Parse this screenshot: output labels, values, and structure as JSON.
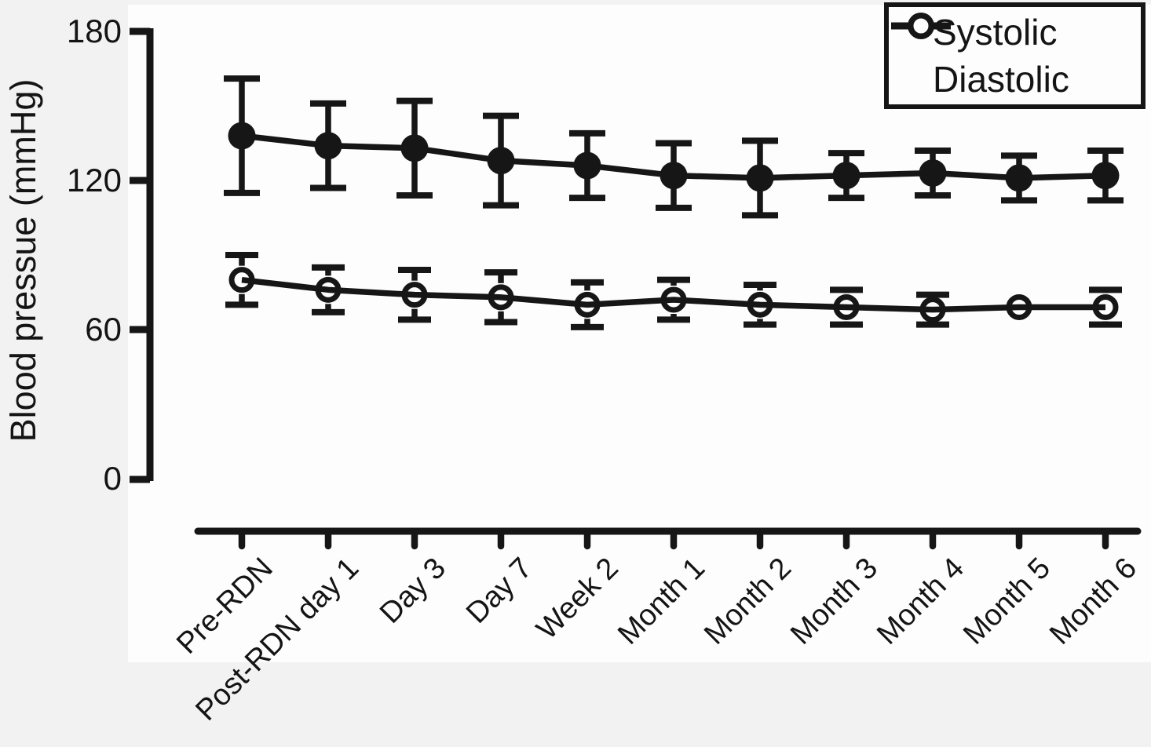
{
  "figure": {
    "background_color": "#f2f2f2",
    "plot_background_color": "#fdfdfd",
    "ink_color": "#161616"
  },
  "legend": {
    "items": [
      {
        "label": "Systolic",
        "marker": "filled-circle-icon"
      },
      {
        "label": "Diastolic",
        "marker": "open-circle-icon"
      }
    ]
  },
  "chart_data": {
    "type": "line",
    "title": "",
    "xlabel": "",
    "ylabel": "Blood pressue (mmHg)",
    "ylim": [
      0,
      180
    ],
    "yticks": [
      180,
      120,
      60,
      0
    ],
    "grid": false,
    "legend_position": "top-right",
    "error_bars": true,
    "categories": [
      "Pre-RDN",
      "Post-RDN day 1",
      "Day 3",
      "Day 7",
      "Week 2",
      "Month 1",
      "Month 2",
      "Month 3",
      "Month 4",
      "Month 5",
      "Month 6"
    ],
    "series": [
      {
        "name": "Systolic",
        "marker": "filled-circle",
        "color": "#161616",
        "values": [
          138,
          134,
          133,
          128,
          126,
          122,
          121,
          122,
          123,
          121,
          122
        ],
        "errors": [
          23,
          17,
          19,
          18,
          13,
          13,
          15,
          9,
          9,
          9,
          10
        ]
      },
      {
        "name": "Diastolic",
        "marker": "open-circle",
        "color": "#161616",
        "values": [
          80,
          76,
          74,
          73,
          70,
          72,
          70,
          69,
          68,
          69,
          69
        ],
        "errors": [
          10,
          9,
          10,
          10,
          9,
          8,
          8,
          7,
          6,
          0,
          7
        ]
      }
    ]
  }
}
